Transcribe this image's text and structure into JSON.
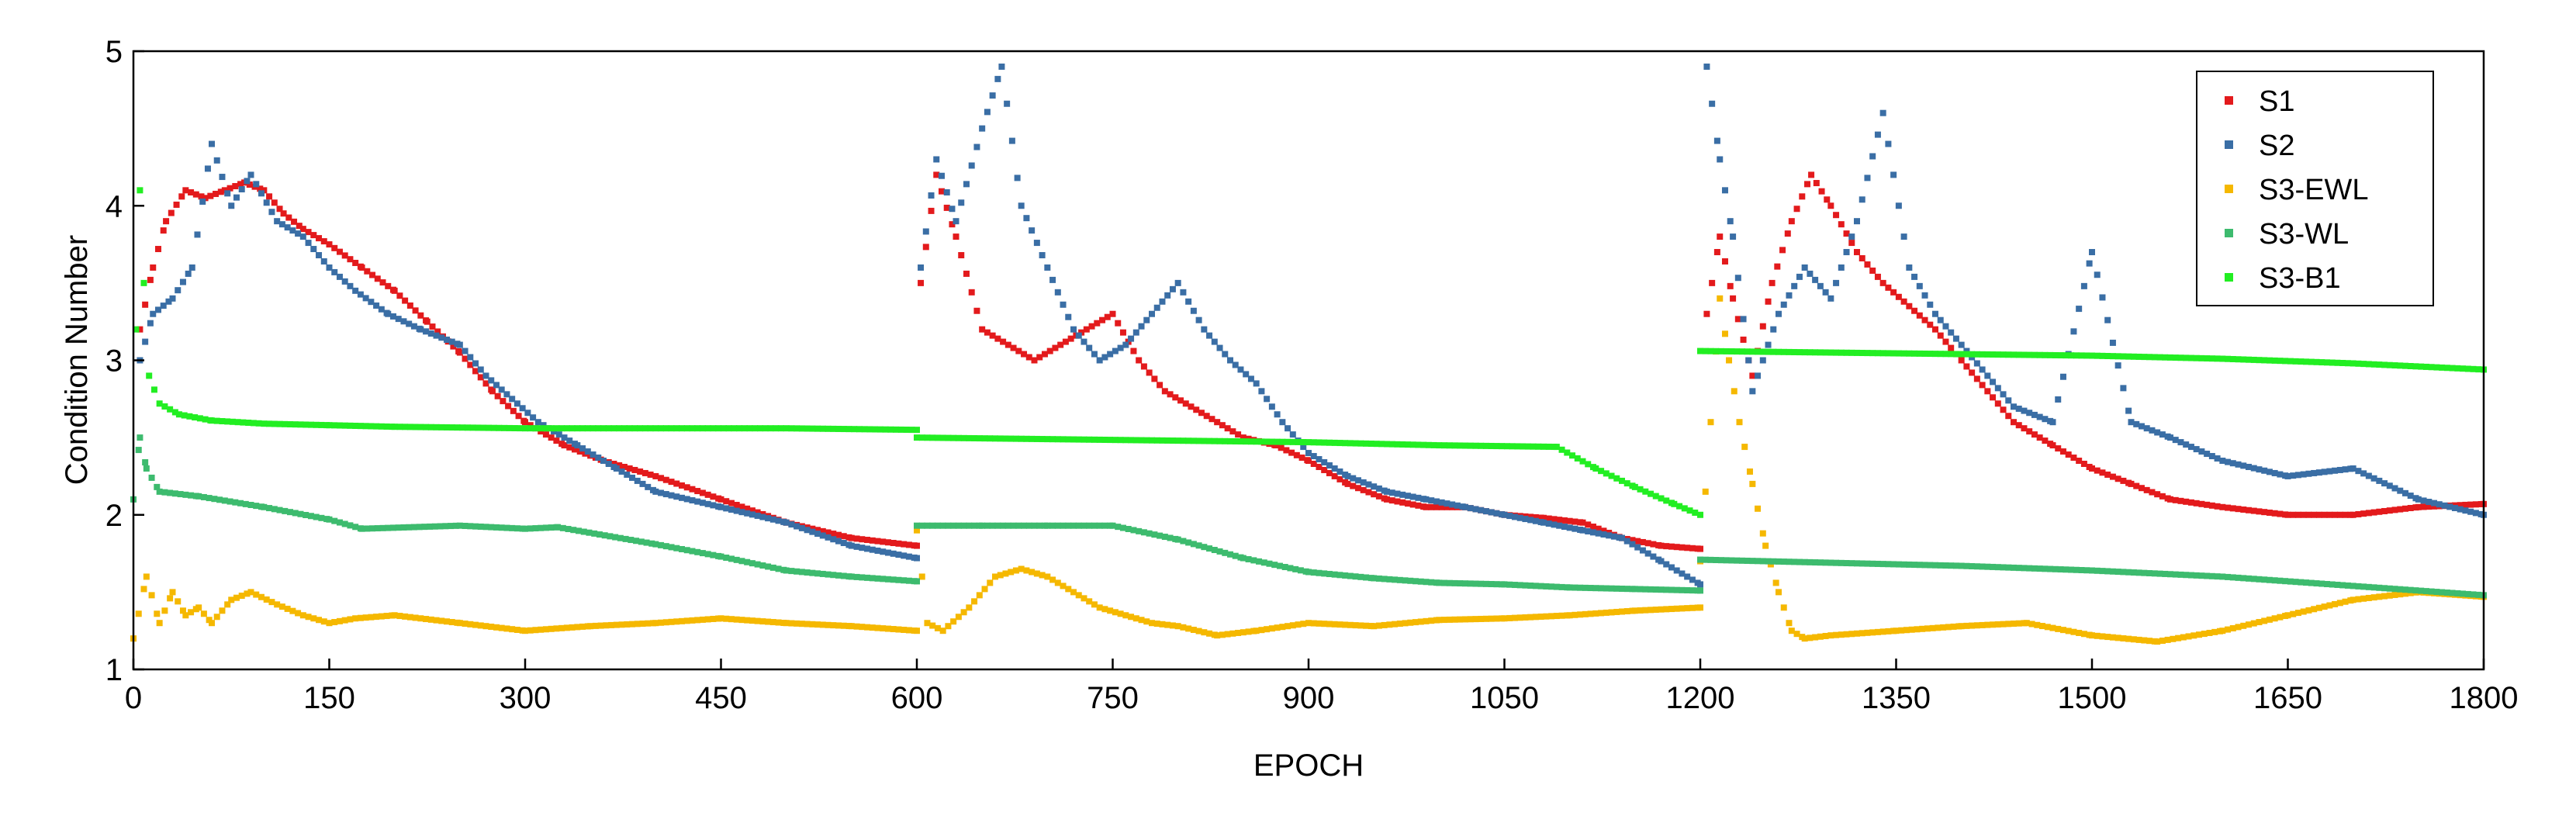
{
  "chart_data": {
    "type": "scatter",
    "title": "",
    "xlabel": "EPOCH",
    "ylabel": "Condition Number",
    "xlim": [
      0,
      1800
    ],
    "ylim": [
      1,
      5
    ],
    "xticks": [
      0,
      150,
      300,
      450,
      600,
      750,
      900,
      1050,
      1200,
      1350,
      1500,
      1650,
      1800
    ],
    "yticks": [
      1,
      2,
      3,
      4,
      5
    ],
    "grid": false,
    "legend_position": "top-right",
    "series": [
      {
        "name": "S1",
        "color": "#e31a1c",
        "marker": "square",
        "segments": [
          {
            "x": [
              5,
              15,
              25,
              40,
              55,
              70,
              85,
              100,
              115,
              130,
              150,
              175,
              200,
              225,
              250,
              275,
              300,
              330,
              360,
              400,
              450,
              500,
              550,
              600
            ],
            "y": [
              3.2,
              3.6,
              3.9,
              4.1,
              4.05,
              4.1,
              4.15,
              4.1,
              3.95,
              3.85,
              3.75,
              3.6,
              3.45,
              3.25,
              3.05,
              2.8,
              2.6,
              2.45,
              2.35,
              2.25,
              2.1,
              1.95,
              1.85,
              1.8
            ]
          },
          {
            "x": [
              603,
              615,
              630,
              650,
              670,
              690,
              710,
              730,
              750,
              770,
              790,
              810,
              830,
              850,
              875,
              900,
              930,
              960,
              990,
              1020,
              1050,
              1080,
              1110,
              1140,
              1170,
              1200
            ],
            "y": [
              3.5,
              4.2,
              3.8,
              3.2,
              3.1,
              3.0,
              3.1,
              3.2,
              3.3,
              3.0,
              2.8,
              2.7,
              2.6,
              2.5,
              2.45,
              2.35,
              2.2,
              2.1,
              2.05,
              2.05,
              2.0,
              1.98,
              1.95,
              1.85,
              1.8,
              1.78
            ]
          },
          {
            "x": [
              1205,
              1215,
              1225,
              1240,
              1255,
              1270,
              1285,
              1300,
              1320,
              1340,
              1360,
              1380,
              1400,
              1420,
              1440,
              1470,
              1500,
              1530,
              1560,
              1600,
              1650,
              1700,
              1750,
              1800
            ],
            "y": [
              3.3,
              3.8,
              3.4,
              2.9,
              3.5,
              3.9,
              4.2,
              4.0,
              3.7,
              3.5,
              3.35,
              3.2,
              3.0,
              2.8,
              2.6,
              2.45,
              2.3,
              2.2,
              2.1,
              2.05,
              2.0,
              2.0,
              2.05,
              2.07
            ]
          }
        ]
      },
      {
        "name": "S2",
        "color": "#3a6ea5",
        "marker": "square",
        "segments": [
          {
            "x": [
              5,
              15,
              30,
              45,
              60,
              75,
              90,
              110,
              130,
              150,
              170,
              195,
              220,
              250,
              270,
              290,
              310,
              340,
              370,
              400,
              450,
              500,
              550,
              600
            ],
            "y": [
              3.0,
              3.3,
              3.4,
              3.6,
              4.4,
              4.0,
              4.2,
              3.9,
              3.8,
              3.6,
              3.45,
              3.3,
              3.2,
              3.1,
              2.9,
              2.75,
              2.6,
              2.45,
              2.3,
              2.15,
              2.05,
              1.95,
              1.8,
              1.72
            ]
          },
          {
            "x": [
              603,
              615,
              630,
              650,
              665,
              680,
              700,
              720,
              740,
              760,
              780,
              800,
              820,
              840,
              860,
              880,
              900,
              930,
              960,
              990,
              1020,
              1050,
              1080,
              1110,
              1140,
              1170,
              1200
            ],
            "y": [
              3.6,
              4.3,
              3.9,
              4.5,
              4.9,
              4.0,
              3.6,
              3.2,
              3.0,
              3.1,
              3.3,
              3.5,
              3.2,
              3.0,
              2.85,
              2.6,
              2.4,
              2.25,
              2.15,
              2.1,
              2.05,
              2.0,
              1.95,
              1.9,
              1.85,
              1.7,
              1.55
            ]
          },
          {
            "x": [
              1205,
              1215,
              1225,
              1240,
              1260,
              1280,
              1300,
              1320,
              1340,
              1360,
              1380,
              1400,
              1420,
              1440,
              1470,
              1500,
              1530,
              1560,
              1600,
              1650,
              1700,
              1750,
              1800
            ],
            "y": [
              4.9,
              4.3,
              3.8,
              2.8,
              3.3,
              3.6,
              3.4,
              3.9,
              4.6,
              3.6,
              3.3,
              3.1,
              2.9,
              2.7,
              2.6,
              3.7,
              2.6,
              2.5,
              2.35,
              2.25,
              2.3,
              2.1,
              2.0
            ]
          }
        ]
      },
      {
        "name": "S3-EWL",
        "color": "#f5b800",
        "marker": "square",
        "segments": [
          {
            "x": [
              0,
              10,
              20,
              30,
              40,
              50,
              60,
              75,
              90,
              110,
              130,
              150,
              170,
              200,
              250,
              300,
              350,
              400,
              450,
              500,
              550,
              600
            ],
            "y": [
              1.2,
              1.6,
              1.3,
              1.5,
              1.35,
              1.4,
              1.3,
              1.45,
              1.5,
              1.42,
              1.35,
              1.3,
              1.33,
              1.35,
              1.3,
              1.25,
              1.28,
              1.3,
              1.33,
              1.3,
              1.28,
              1.25
            ]
          },
          {
            "x": [
              600,
              608,
              620,
              640,
              660,
              680,
              700,
              720,
              740,
              760,
              780,
              800,
              830,
              860,
              900,
              950,
              1000,
              1050,
              1100,
              1150,
              1200
            ],
            "y": [
              1.9,
              1.3,
              1.25,
              1.4,
              1.6,
              1.65,
              1.6,
              1.5,
              1.4,
              1.35,
              1.3,
              1.28,
              1.22,
              1.25,
              1.3,
              1.28,
              1.32,
              1.33,
              1.35,
              1.38,
              1.4
            ]
          },
          {
            "x": [
              1200,
              1208,
              1215,
              1222,
              1230,
              1240,
              1250,
              1260,
              1270,
              1280,
              1300,
              1350,
              1400,
              1450,
              1500,
              1550,
              1600,
              1650,
              1700,
              1750,
              1800
            ],
            "y": [
              1.7,
              2.6,
              3.4,
              3.0,
              2.6,
              2.2,
              1.8,
              1.5,
              1.25,
              1.2,
              1.22,
              1.25,
              1.28,
              1.3,
              1.22,
              1.18,
              1.25,
              1.35,
              1.45,
              1.5,
              1.47
            ]
          }
        ]
      },
      {
        "name": "S3-WL",
        "color": "#3dbb6e",
        "marker": "square",
        "segments": [
          {
            "x": [
              0,
              5,
              10,
              20,
              50,
              100,
              150,
              175,
              250,
              300,
              325,
              400,
              450,
              500,
              550,
              600
            ],
            "y": [
              2.1,
              2.5,
              2.3,
              2.15,
              2.12,
              2.05,
              1.97,
              1.91,
              1.93,
              1.91,
              1.92,
              1.81,
              1.73,
              1.64,
              1.6,
              1.57
            ]
          },
          {
            "x": [
              600,
              650,
              700,
              750,
              800,
              850,
              900,
              950,
              1000,
              1050,
              1100,
              1150,
              1200
            ],
            "y": [
              1.93,
              1.93,
              1.93,
              1.93,
              1.84,
              1.72,
              1.63,
              1.59,
              1.56,
              1.55,
              1.53,
              1.52,
              1.51
            ]
          },
          {
            "x": [
              1200,
              1300,
              1400,
              1500,
              1600,
              1700,
              1800
            ],
            "y": [
              1.71,
              1.69,
              1.67,
              1.64,
              1.6,
              1.54,
              1.48
            ]
          }
        ]
      },
      {
        "name": "S3-B1",
        "color": "#22ee22",
        "marker": "square",
        "segments": [
          {
            "x": [
              2,
              5,
              8,
              12,
              20,
              35,
              60,
              100,
              150,
              200,
              300,
              400,
              500,
              600
            ],
            "y": [
              3.2,
              4.1,
              3.5,
              2.9,
              2.72,
              2.65,
              2.61,
              2.59,
              2.58,
              2.57,
              2.56,
              2.56,
              2.56,
              2.55
            ]
          },
          {
            "x": [
              600,
              700,
              800,
              900,
              1000,
              1090,
              1120,
              1150,
              1180,
              1200
            ],
            "y": [
              2.5,
              2.49,
              2.48,
              2.47,
              2.45,
              2.44,
              2.3,
              2.18,
              2.07,
              2.0
            ]
          },
          {
            "x": [
              1200,
              1300,
              1400,
              1500,
              1600,
              1700,
              1800
            ],
            "y": [
              3.06,
              3.05,
              3.04,
              3.03,
              3.01,
              2.98,
              2.94
            ]
          }
        ]
      }
    ]
  }
}
